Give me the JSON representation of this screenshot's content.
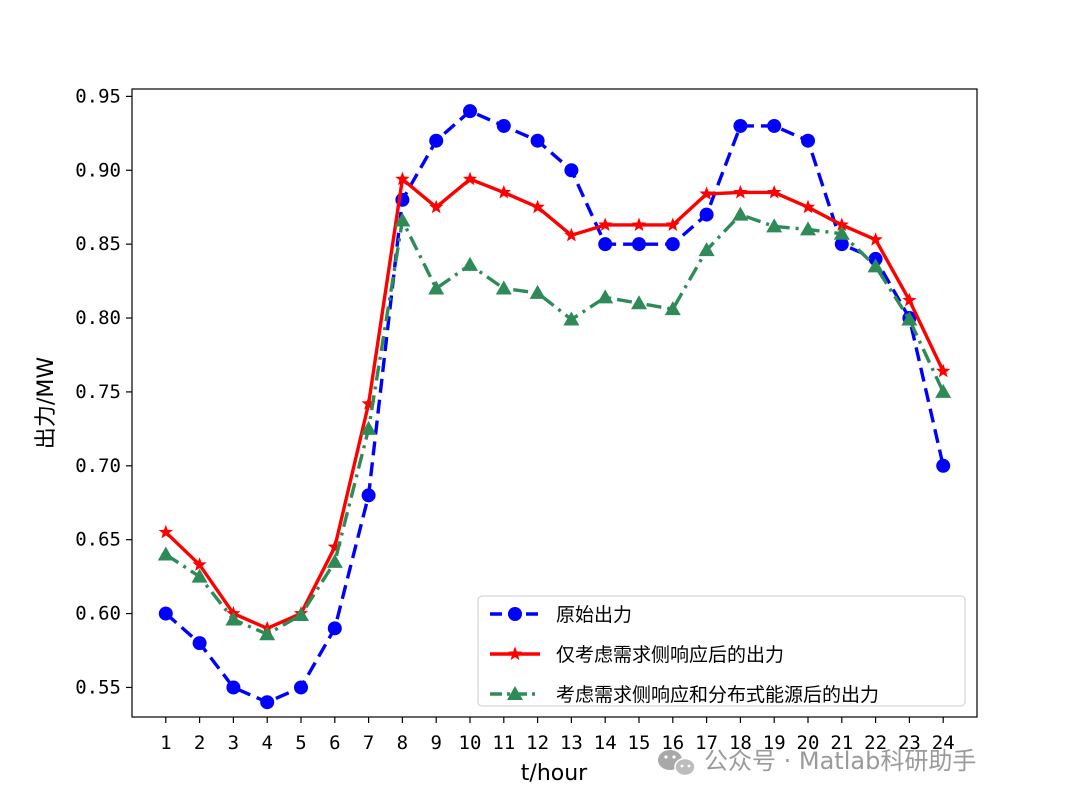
{
  "chart_data": {
    "type": "line",
    "title": "",
    "xlabel": "t/hour",
    "ylabel": "出力/MW",
    "x": [
      1,
      2,
      3,
      4,
      5,
      6,
      7,
      8,
      9,
      10,
      11,
      12,
      13,
      14,
      15,
      16,
      17,
      18,
      19,
      20,
      21,
      22,
      23,
      24
    ],
    "xlim": [
      0,
      25
    ],
    "ylim": [
      0.53,
      0.955
    ],
    "yticks": [
      0.55,
      0.6,
      0.65,
      0.7,
      0.75,
      0.8,
      0.85,
      0.9,
      0.95
    ],
    "ytick_labels": [
      "0.55",
      "0.60",
      "0.65",
      "0.70",
      "0.75",
      "0.80",
      "0.85",
      "0.90",
      "0.95"
    ],
    "legend_position": "lower-right",
    "grid": false,
    "series": [
      {
        "name": "原始出力",
        "color": "#0000ff",
        "style": "dashed",
        "marker": "circle",
        "values": [
          0.6,
          0.58,
          0.55,
          0.54,
          0.55,
          0.59,
          0.68,
          0.88,
          0.92,
          0.94,
          0.93,
          0.92,
          0.9,
          0.85,
          0.85,
          0.85,
          0.87,
          0.93,
          0.93,
          0.92,
          0.85,
          0.84,
          0.8,
          0.7
        ]
      },
      {
        "name": "仅考虑需求侧响应后的出力",
        "color": "#ff0000",
        "style": "solid",
        "marker": "star",
        "values": [
          0.655,
          0.633,
          0.6,
          0.59,
          0.6,
          0.645,
          0.742,
          0.894,
          0.875,
          0.894,
          0.885,
          0.875,
          0.856,
          0.863,
          0.863,
          0.863,
          0.884,
          0.885,
          0.885,
          0.875,
          0.863,
          0.853,
          0.812,
          0.764
        ]
      },
      {
        "name": "考虑需求侧响应和分布式能源后的出力",
        "color": "#2e8b57",
        "style": "dashdot",
        "marker": "triangle",
        "values": [
          0.64,
          0.625,
          0.596,
          0.586,
          0.599,
          0.635,
          0.725,
          0.866,
          0.82,
          0.836,
          0.82,
          0.817,
          0.799,
          0.814,
          0.81,
          0.806,
          0.846,
          0.87,
          0.862,
          0.86,
          0.857,
          0.835,
          0.799,
          0.75
        ]
      }
    ]
  },
  "watermark": {
    "text": "公众号 · Matlab科研助手",
    "icon": "wechat-icon"
  }
}
